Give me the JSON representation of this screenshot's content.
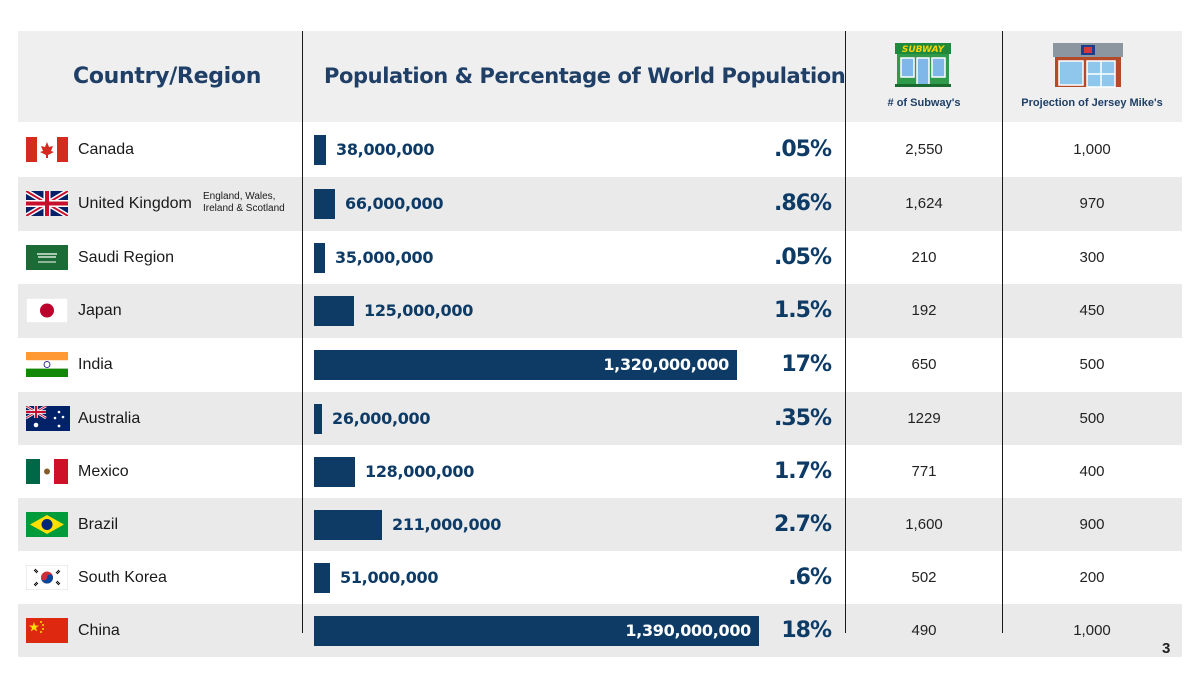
{
  "headers": {
    "country": "Country/Region",
    "population": "Population & Percentage of World Population",
    "subway": "# of Subway's",
    "jersey": "Projection of Jersey Mike's",
    "subway_logo_text": "SUBWAY"
  },
  "colors": {
    "accent": "#0d3b66",
    "header_text": "#1f3f66",
    "row_shade": "#eaeaea"
  },
  "rows": [
    {
      "country": "Canada",
      "note": "",
      "flag": "canada-flag-icon",
      "population_label": "38,000,000",
      "pct": ".05%",
      "subway": "2,550",
      "jersey": "1,000"
    },
    {
      "country": "United Kingdom",
      "note": "England, Wales, Ireland & Scotland",
      "flag": "uk-flag-icon",
      "population_label": "66,000,000",
      "pct": ".86%",
      "subway": "1,624",
      "jersey": "970"
    },
    {
      "country": "Saudi Region",
      "note": "",
      "flag": "saudi-flag-icon",
      "population_label": "35,000,000",
      "pct": ".05%",
      "subway": "210",
      "jersey": "300"
    },
    {
      "country": "Japan",
      "note": "",
      "flag": "japan-flag-icon",
      "population_label": "125,000,000",
      "pct": "1.5%",
      "subway": "192",
      "jersey": "450"
    },
    {
      "country": "India",
      "note": "",
      "flag": "india-flag-icon",
      "population_label": "1,320,000,000",
      "pct": "17%",
      "subway": "650",
      "jersey": "500"
    },
    {
      "country": "Australia",
      "note": "",
      "flag": "australia-flag-icon",
      "population_label": "26,000,000",
      "pct": ".35%",
      "subway": "1229",
      "jersey": "500"
    },
    {
      "country": "Mexico",
      "note": "",
      "flag": "mexico-flag-icon",
      "population_label": "128,000,000",
      "pct": "1.7%",
      "subway": "771",
      "jersey": "400"
    },
    {
      "country": "Brazil",
      "note": "",
      "flag": "brazil-flag-icon",
      "population_label": "211,000,000",
      "pct": "2.7%",
      "subway": "1,600",
      "jersey": "900"
    },
    {
      "country": "South Korea",
      "note": "",
      "flag": "south-korea-flag-icon",
      "population_label": "51,000,000",
      "pct": ".6%",
      "subway": "502",
      "jersey": "200"
    },
    {
      "country": "China",
      "note": "",
      "flag": "china-flag-icon",
      "population_label": "1,390,000,000",
      "pct": "18%",
      "subway": "490",
      "jersey": "1,000"
    }
  ],
  "chart_data": {
    "type": "bar",
    "categories": [
      "Canada",
      "United Kingdom",
      "Saudi Region",
      "Japan",
      "India",
      "Australia",
      "Mexico",
      "Brazil",
      "South Korea",
      "China"
    ],
    "values": [
      38000000,
      66000000,
      35000000,
      125000000,
      1320000000,
      26000000,
      128000000,
      211000000,
      51000000,
      1390000000
    ],
    "percent_of_world": [
      ".05%",
      ".86%",
      ".05%",
      "1.5%",
      "17%",
      ".35%",
      "1.7%",
      "2.7%",
      ".6%",
      "18%"
    ],
    "orientation": "horizontal"
  },
  "page_number": "3"
}
